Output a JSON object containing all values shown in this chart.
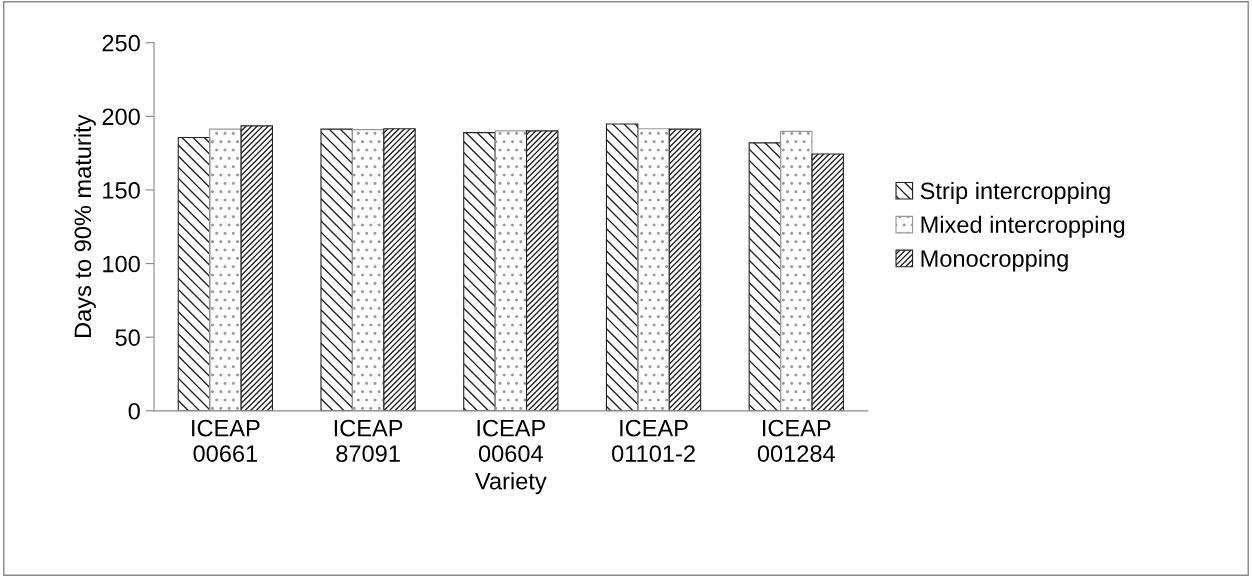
{
  "chart_data": {
    "type": "bar",
    "xlabel": "Variety",
    "ylabel": "Days to 90% maturity",
    "categories": [
      "ICEAP\n00661",
      "ICEAP\n87091",
      "ICEAP\n00604",
      "ICEAP\n01101-2",
      "ICEAP\n001284"
    ],
    "series": [
      {
        "name": "Strip intercropping",
        "color": "#222222",
        "values": [
          185.6,
          191.3,
          188.9,
          194.8,
          182
        ]
      },
      {
        "name": "Mixed intercropping",
        "color": "#999999",
        "values": [
          191.3,
          191,
          190.1,
          191.6,
          189.8
        ]
      },
      {
        "name": "Monocropping",
        "color": "#222222",
        "values": [
          193.5,
          191.6,
          190.1,
          191.3,
          174.4
        ]
      }
    ],
    "ylim": [
      0,
      250
    ],
    "yticks": [
      0,
      50,
      100,
      150,
      200,
      250
    ],
    "grid": false,
    "legend": "right"
  }
}
